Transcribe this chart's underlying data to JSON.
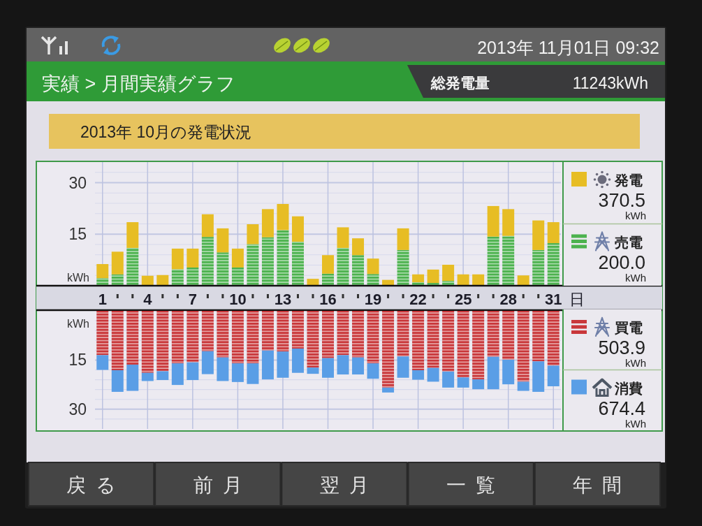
{
  "chart_data": [
    {
      "type": "other",
      "title": "実績 > 月間実績グラフ",
      "annotations": [
        "2013年 11月01日 09:32",
        "総発電量",
        "11243kWh",
        "戻る",
        "前月",
        "翌月",
        "一覧",
        "年間"
      ]
    },
    {
      "type": "bar",
      "title": "2013年 10月の発電状況",
      "xlabel": "日",
      "ylabel": "kWh",
      "categories": [
        "1",
        null,
        null,
        "4",
        null,
        null,
        "7",
        null,
        null,
        "10",
        null,
        null,
        "13",
        null,
        null,
        "16",
        null,
        null,
        "19",
        null,
        null,
        "22",
        null,
        null,
        "25",
        null,
        null,
        "28",
        null,
        null,
        "31"
      ],
      "stacked": true,
      "series": [
        {
          "name": "売電",
          "color": "#4cb24e",
          "values": [
            2.2,
            3.3,
            11.0,
            0,
            0,
            4.8,
            5.3,
            14.2,
            9.7,
            5.3,
            12.1,
            14.1,
            16.2,
            12.8,
            0,
            3.5,
            11.0,
            8.9,
            3.4,
            0,
            10.4,
            1.0,
            0.8,
            1.4,
            0,
            0,
            14.3,
            14.5,
            0,
            10.4,
            12.4
          ]
        },
        {
          "name": "発電",
          "color": "#e7bd24",
          "values": [
            4.1,
            6.6,
            7.5,
            2.9,
            3.1,
            6.0,
            5.5,
            6.6,
            7.0,
            5.5,
            5.8,
            8.2,
            7.6,
            7.4,
            2.0,
            5.4,
            6.0,
            4.9,
            4.5,
            1.7,
            6.3,
            2.3,
            3.9,
            4.7,
            3.3,
            3.3,
            8.9,
            7.8,
            3.0,
            8.6,
            6.1
          ]
        }
      ],
      "ylim": [
        0,
        36
      ],
      "yticks": [
        {
          "value": 3,
          "label": null
        },
        {
          "value": 6,
          "label": null
        },
        {
          "value": 9,
          "label": null
        },
        {
          "value": 12,
          "label": null
        },
        {
          "value": 15,
          "label": "15"
        },
        {
          "value": 18,
          "label": null
        },
        {
          "value": 21,
          "label": null
        },
        {
          "value": 24,
          "label": null
        },
        {
          "value": 27,
          "label": null
        },
        {
          "value": 30,
          "label": "30"
        },
        {
          "value": 33,
          "label": null
        }
      ],
      "grid": true,
      "legend": "right",
      "annotations": [
        "370.5\nkWh",
        "200.0\nkWh"
      ]
    },
    {
      "type": "bar",
      "ylabel": "kWh",
      "categories": [
        "1",
        null,
        null,
        "4",
        null,
        null,
        "7",
        null,
        null,
        "10",
        null,
        null,
        "13",
        null,
        null,
        "16",
        null,
        null,
        "19",
        null,
        null,
        "22",
        null,
        null,
        "25",
        null,
        null,
        "28",
        null,
        null,
        "31"
      ],
      "stacked": true,
      "series": [
        {
          "name": "買電",
          "color": "#c9373a",
          "values": [
            13.5,
            18.1,
            16.4,
            18.9,
            18.4,
            16.0,
            15.7,
            12.3,
            14.2,
            16.0,
            16.0,
            12.1,
            12.4,
            11.5,
            17.3,
            14.4,
            13.5,
            14.2,
            16.0,
            23.4,
            13.9,
            18.1,
            17.4,
            18.5,
            20.3,
            20.9,
            14.0,
            14.9,
            21.6,
            15.4,
            16.7
          ]
        },
        {
          "name": "消費",
          "color": "#5a9ee6",
          "values": [
            4.5,
            6.6,
            8.0,
            2.5,
            2.7,
            6.6,
            5.4,
            7.0,
            7.2,
            5.7,
            6.3,
            8.8,
            8.0,
            7.4,
            1.9,
            6.0,
            5.9,
            5.2,
            4.7,
            1.5,
            6.5,
            2.9,
            4.2,
            4.9,
            3.1,
            3.0,
            9.9,
            7.5,
            2.8,
            9.3,
            6.3
          ]
        }
      ],
      "ylim": [
        36,
        0
      ],
      "yticks": [
        {
          "value": 3,
          "label": null
        },
        {
          "value": 6,
          "label": null
        },
        {
          "value": 9,
          "label": null
        },
        {
          "value": 12,
          "label": null
        },
        {
          "value": 15,
          "label": "15"
        },
        {
          "value": 18,
          "label": null
        },
        {
          "value": 21,
          "label": null
        },
        {
          "value": 24,
          "label": null
        },
        {
          "value": 27,
          "label": null
        },
        {
          "value": 30,
          "label": "30"
        },
        {
          "value": 33,
          "label": null
        }
      ],
      "grid": true,
      "legend": "right",
      "tick_labels": "y",
      "annotations": [
        "503.9\nkWh",
        "674.4\nkWh"
      ]
    }
  ]
}
